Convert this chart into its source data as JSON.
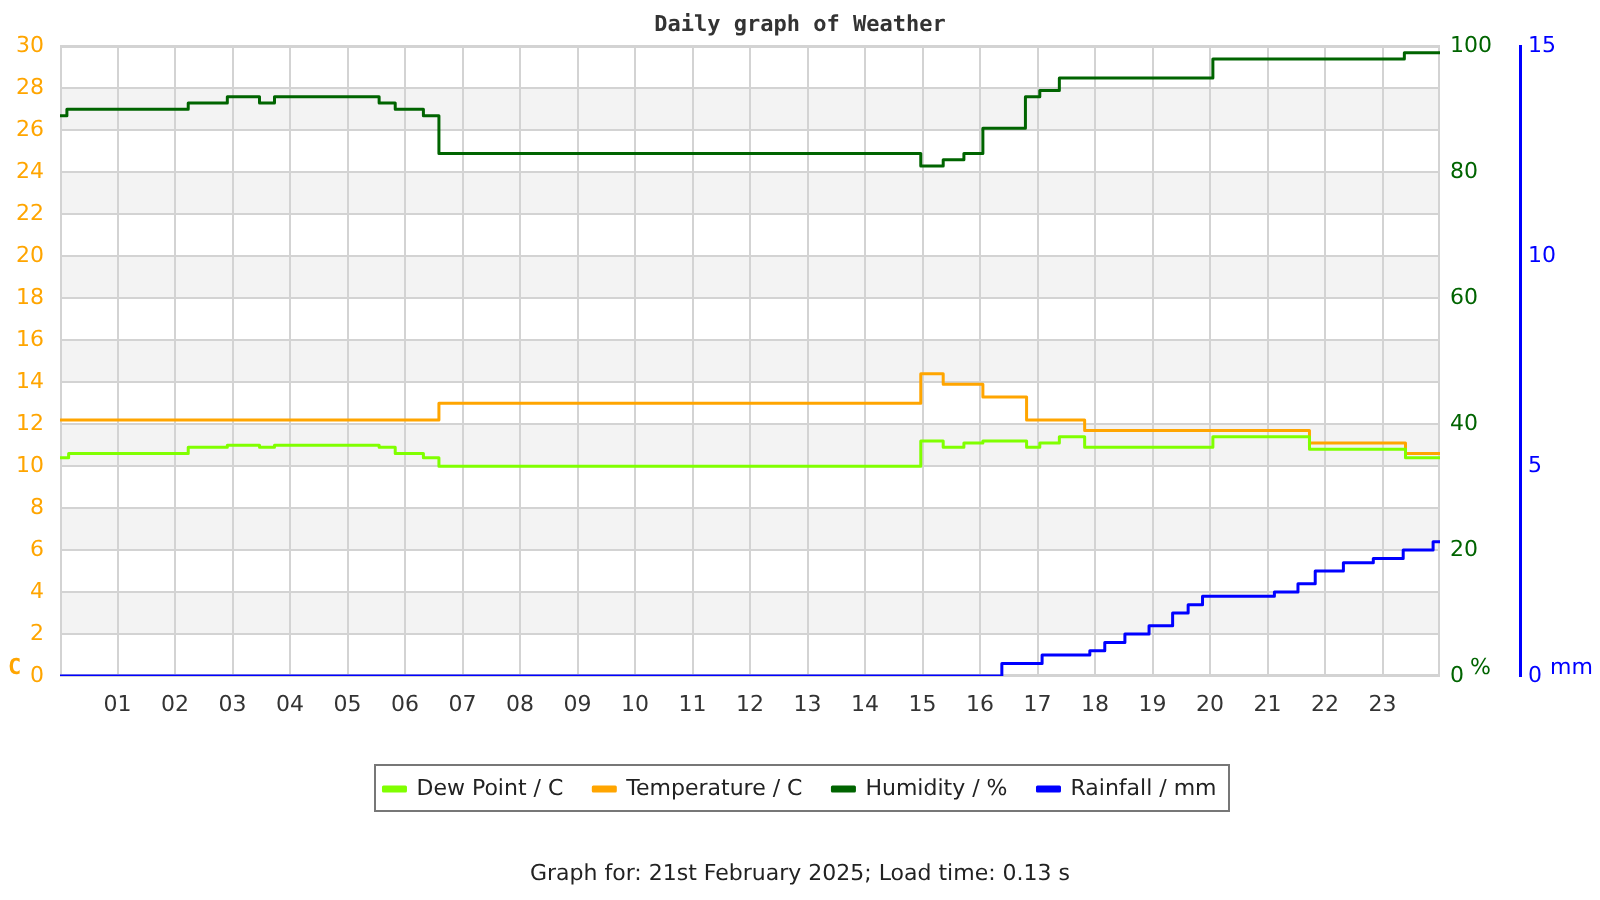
{
  "chart_data": {
    "type": "step",
    "title": "Daily graph of Weather",
    "ylabel": "C",
    "y2label": "%",
    "y3label": "mm",
    "xlim": [
      0,
      24
    ],
    "xticks": [
      {
        "value": 1,
        "label": "01"
      },
      {
        "value": 2,
        "label": "02"
      },
      {
        "value": 3,
        "label": "03"
      },
      {
        "value": 4,
        "label": "04"
      },
      {
        "value": 5,
        "label": "05"
      },
      {
        "value": 6,
        "label": "06"
      },
      {
        "value": 7,
        "label": "07"
      },
      {
        "value": 8,
        "label": "08"
      },
      {
        "value": 9,
        "label": "09"
      },
      {
        "value": 10,
        "label": "10"
      },
      {
        "value": 11,
        "label": "11"
      },
      {
        "value": 12,
        "label": "12"
      },
      {
        "value": 13,
        "label": "13"
      },
      {
        "value": 14,
        "label": "14"
      },
      {
        "value": 15,
        "label": "15"
      },
      {
        "value": 16,
        "label": "16"
      },
      {
        "value": 17,
        "label": "17"
      },
      {
        "value": 18,
        "label": "18"
      },
      {
        "value": 19,
        "label": "19"
      },
      {
        "value": 20,
        "label": "20"
      },
      {
        "value": 21,
        "label": "21"
      },
      {
        "value": 22,
        "label": "22"
      },
      {
        "value": 23,
        "label": "23"
      }
    ],
    "ylim": [
      0,
      30
    ],
    "yticks": [
      0,
      2,
      4,
      6,
      8,
      10,
      12,
      14,
      16,
      18,
      20,
      22,
      24,
      26,
      28,
      30
    ],
    "y2lim": [
      0,
      100
    ],
    "y2ticks": [
      0,
      20,
      40,
      60,
      80,
      100
    ],
    "y3lim": [
      0,
      15
    ],
    "y3ticks": [
      0,
      5,
      10,
      15
    ],
    "grid": true,
    "legend": "bottom",
    "bands": [
      {
        "axis": "y",
        "from": 2,
        "to": 4,
        "color": "#f3f3f3"
      },
      {
        "axis": "y",
        "from": 6,
        "to": 8,
        "color": "#f3f3f3"
      },
      {
        "axis": "y",
        "from": 10,
        "to": 12,
        "color": "#f3f3f3"
      },
      {
        "axis": "y",
        "from": 14,
        "to": 16,
        "color": "#f3f3f3"
      },
      {
        "axis": "y",
        "from": 18,
        "to": 20,
        "color": "#f3f3f3"
      },
      {
        "axis": "y",
        "from": 22,
        "to": 24,
        "color": "#f3f3f3"
      },
      {
        "axis": "y",
        "from": 26,
        "to": 28,
        "color": "#f3f3f3"
      }
    ],
    "series": [
      {
        "name": "Dew Point / C",
        "color": "#80ff00",
        "x": [
          0,
          0.15,
          2.23,
          2.91,
          3.47,
          3.73,
          5.55,
          5.83,
          6.32,
          6.59,
          14.97,
          15.36,
          15.72,
          16.05,
          16.81,
          17.04,
          17.38,
          17.82,
          20.05,
          21.73,
          23.4,
          24
        ],
        "values": [
          10.4,
          10.6,
          10.9,
          11.0,
          10.9,
          11.0,
          10.9,
          10.6,
          10.4,
          10.0,
          11.2,
          10.9,
          11.1,
          11.2,
          10.9,
          11.1,
          11.4,
          10.9,
          11.4,
          10.8,
          10.4,
          10.4
        ]
      },
      {
        "name": "Temperature / C",
        "color": "#ffa500",
        "x": [
          0,
          6.59,
          14.97,
          15.36,
          16.05,
          16.81,
          17.82,
          21.73,
          23.4,
          24
        ],
        "values": [
          12.2,
          13.0,
          14.4,
          13.9,
          13.3,
          12.2,
          11.7,
          11.1,
          10.6,
          10.6
        ]
      },
      {
        "name": "Humidity / %",
        "color": "#006400",
        "axis": "y2",
        "x": [
          0,
          0.12,
          2.23,
          2.91,
          3.47,
          3.73,
          5.55,
          5.83,
          6.32,
          6.59,
          14.97,
          15.36,
          15.72,
          16.05,
          16.79,
          17.04,
          17.38,
          20.05,
          23.38,
          24
        ],
        "values": [
          89,
          90,
          91,
          92,
          91,
          92,
          91,
          90,
          89,
          83,
          81,
          82,
          83,
          87,
          92,
          93,
          95,
          98,
          99,
          99
        ]
      },
      {
        "name": "Rainfall / mm",
        "color": "#0000ff",
        "axis": "y3",
        "x": [
          0,
          16.38,
          17.08,
          17.91,
          18.17,
          18.52,
          18.94,
          19.35,
          19.62,
          19.87,
          21.12,
          21.53,
          21.83,
          22.32,
          22.84,
          23.36,
          23.88,
          24
        ],
        "values": [
          0,
          0.3,
          0.5,
          0.6,
          0.8,
          1.0,
          1.2,
          1.5,
          1.7,
          1.9,
          2.0,
          2.2,
          2.5,
          2.7,
          2.8,
          3.0,
          3.2,
          3.2
        ]
      }
    ],
    "annotations": [
      "Graph for: 21st February 2025; Load time: 0.13 s"
    ]
  }
}
